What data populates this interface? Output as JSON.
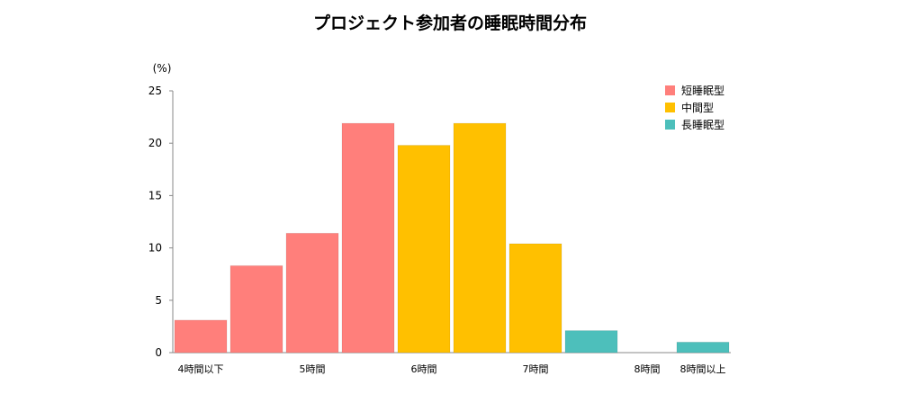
{
  "chart_data": {
    "type": "bar",
    "title": "プロジェクト参加者の睡眠時間分布",
    "ylabel": "(%)",
    "xlabel": "",
    "ylim": [
      0,
      25
    ],
    "yticks": [
      0,
      5,
      10,
      15,
      20,
      25
    ],
    "grid": false,
    "legend_position": "top-right",
    "categories": [
      "4時間以下",
      "",
      "5時間",
      "",
      "6時間",
      "",
      "7時間",
      "",
      "8時間",
      "8時間以上"
    ],
    "values": [
      3.1,
      8.3,
      11.4,
      21.9,
      19.8,
      21.9,
      10.4,
      2.1,
      0,
      1.0
    ],
    "groups": [
      0,
      0,
      0,
      0,
      1,
      1,
      1,
      2,
      2,
      2
    ],
    "legend": [
      {
        "name": "短睡眠型",
        "color": "#FF7F7B"
      },
      {
        "name": "中間型",
        "color": "#FFC000"
      },
      {
        "name": "長睡眠型",
        "color": "#4DBFBB"
      }
    ]
  }
}
